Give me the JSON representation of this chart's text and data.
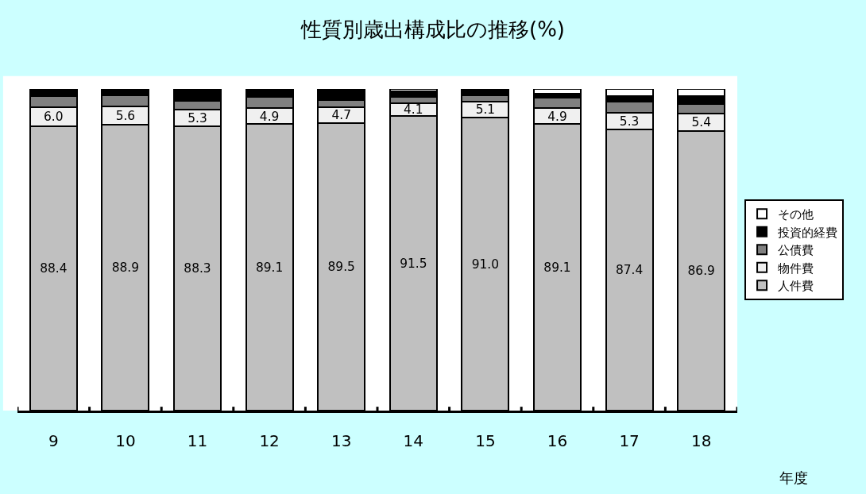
{
  "chart_data": {
    "type": "bar",
    "title": "性質別歳出構成比の推移(%)",
    "xlabel": "年度",
    "categories": [
      "9",
      "10",
      "11",
      "12",
      "13",
      "14",
      "15",
      "16",
      "17",
      "18"
    ],
    "stacked": true,
    "ylim": [
      0,
      100
    ],
    "tick_labels": "x",
    "legend": "right",
    "series": [
      {
        "name": "人件費",
        "color": "#c0c0c0",
        "values": [
          88.4,
          88.9,
          88.3,
          89.1,
          89.5,
          91.5,
          91.0,
          89.1,
          87.4,
          86.9
        ],
        "value_labels": [
          "88.4",
          "88.9",
          "88.3",
          "89.1",
          "89.5",
          "91.5",
          "91.0",
          "89.1",
          "87.4",
          "86.9"
        ]
      },
      {
        "name": "物件費",
        "color": "#f0f0f0",
        "values": [
          6.0,
          5.6,
          5.3,
          4.9,
          4.7,
          4.1,
          5.1,
          4.9,
          5.3,
          5.4
        ],
        "value_labels": [
          "6.0",
          "5.6",
          "5.3",
          "4.9",
          "4.7",
          "4.1",
          "5.1",
          "4.9",
          "5.3",
          "5.4"
        ]
      },
      {
        "name": "公債費",
        "color": "#808080",
        "values": [
          3.3,
          3.5,
          2.8,
          3.5,
          2.3,
          2.0,
          1.9,
          3.3,
          3.4,
          3.0
        ]
      },
      {
        "name": "投資的経費",
        "color": "#000000",
        "values": [
          2.0,
          1.5,
          3.0,
          2.0,
          2.9,
          1.7,
          1.6,
          1.3,
          1.6,
          2.4
        ]
      },
      {
        "name": "その他",
        "color": "#ffffff",
        "values": [
          0.3,
          0.5,
          0.6,
          0.5,
          0.6,
          0.7,
          0.4,
          1.4,
          2.3,
          2.3
        ]
      }
    ]
  }
}
